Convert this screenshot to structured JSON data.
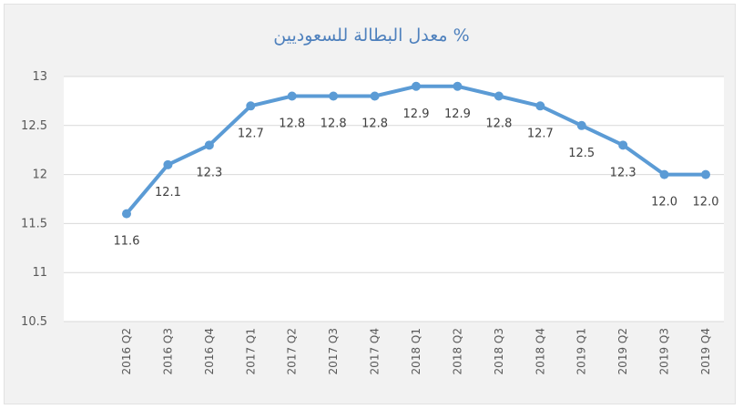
{
  "chart_data": {
    "type": "line",
    "title": "معدل البطالة للسعوديين %",
    "categories": [
      "2016 Q2",
      "2016 Q3",
      "2016 Q4",
      "2017 Q1",
      "2017 Q2",
      "2017 Q3",
      "2017 Q4",
      "2018 Q1",
      "2018 Q2",
      "2018 Q3",
      "2018 Q4",
      "2019 Q1",
      "2019 Q2",
      "2019 Q3",
      "2019 Q4"
    ],
    "series": [
      {
        "values": [
          11.6,
          12.1,
          12.3,
          12.7,
          12.8,
          12.8,
          12.8,
          12.9,
          12.9,
          12.8,
          12.7,
          12.5,
          12.3,
          12.0,
          12.0
        ]
      }
    ],
    "data_labels": [
      "11.6",
      "12.1",
      "12.3",
      "12.7",
      "12.8",
      "12.8",
      "12.8",
      "12.9",
      "12.9",
      "12.8",
      "12.7",
      "12.5",
      "12.3",
      "12.0",
      "12.0"
    ],
    "y_ticks": [
      "10.5",
      "11",
      "11.5",
      "12",
      "12.5",
      "13"
    ],
    "ylim": [
      10.5,
      13
    ],
    "xlabel": "",
    "ylabel": "",
    "grid": true,
    "legend": "none",
    "line_color": "#5b9bd5",
    "grid_color": "#d9d9d9"
  }
}
